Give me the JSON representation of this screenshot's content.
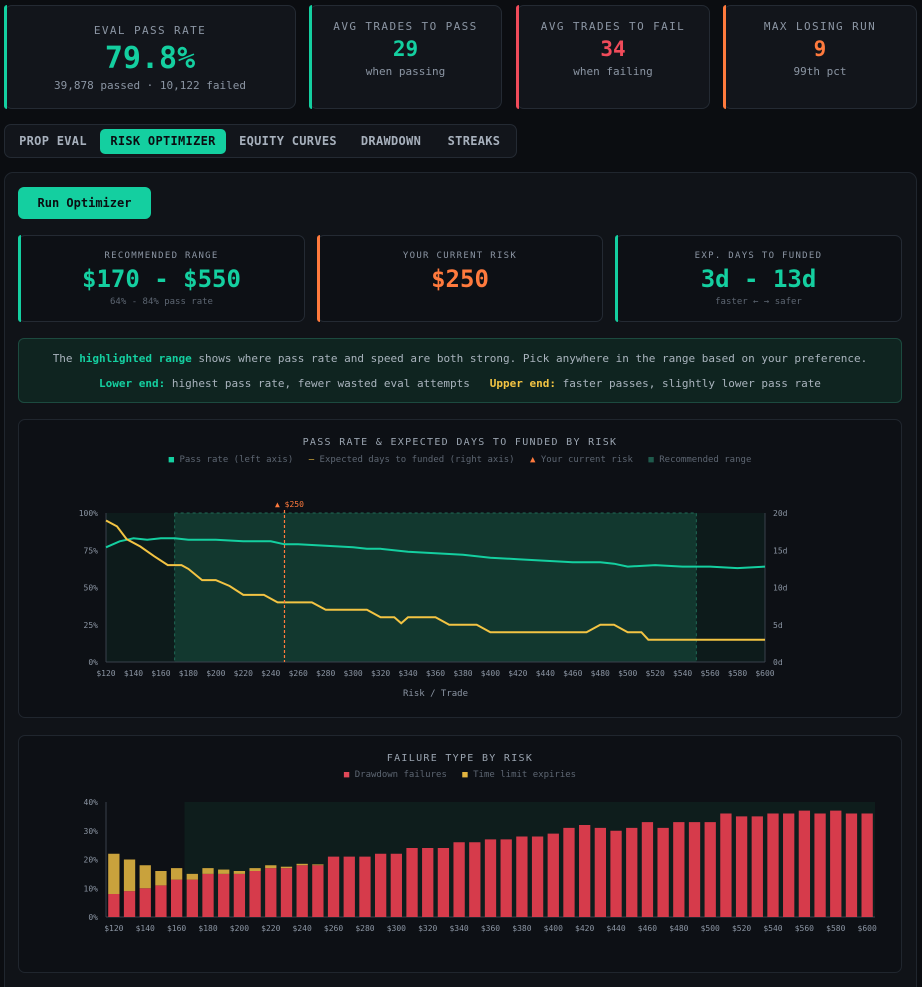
{
  "stats": [
    {
      "label": "EVAL PASS RATE",
      "value": "79.8%",
      "sub": "39,878 passed · 10,122 failed",
      "color": "#14cfa0"
    },
    {
      "label": "AVG TRADES TO PASS",
      "value": "29",
      "sub": "when passing",
      "color": "#14cfa0"
    },
    {
      "label": "AVG TRADES TO FAIL",
      "value": "34",
      "sub": "when failing",
      "color": "#f04b5a"
    },
    {
      "label": "MAX LOSING RUN",
      "value": "9",
      "sub": "99th pct",
      "color": "#ff7a3d"
    }
  ],
  "tabs": [
    "PROP EVAL",
    "RISK OPTIMIZER",
    "EQUITY CURVES",
    "DRAWDOWN",
    "STREAKS"
  ],
  "active_tab": "RISK OPTIMIZER",
  "run_button": "Run Optimizer",
  "metrics": [
    {
      "label": "RECOMMENDED RANGE",
      "value": "$170 - $550",
      "sub": "64% - 84% pass rate",
      "color": "#14cfa0"
    },
    {
      "label": "YOUR CURRENT RISK",
      "value": "$250",
      "sub": "",
      "color": "#ff7a3d"
    },
    {
      "label": "EXP. DAYS TO FUNDED",
      "value": "3d - 13d",
      "sub": "faster ← → safer",
      "color": "#14cfa0"
    }
  ],
  "info": {
    "line1_pre": "The ",
    "line1_hl": "highlighted range",
    "line1_post": " shows where pass rate and speed are both strong. Pick anywhere in the range based on your preference.",
    "lower_label": "Lower end:",
    "lower_text": " highest pass rate, fewer wasted eval attempts",
    "upper_label": "Upper end:",
    "upper_text": " faster passes, slightly lower pass rate"
  },
  "chart1": {
    "title": "PASS RATE & EXPECTED DAYS TO FUNDED BY RISK",
    "legend": {
      "pass": "■ Pass rate (left axis)",
      "days": "— Expected days to funded (right axis)",
      "current": "▲ Your current risk",
      "range": "■ Recommended range"
    },
    "current_label": "▲ $250",
    "xlabel": "Risk / Trade"
  },
  "chart2": {
    "title": "FAILURE TYPE BY RISK",
    "legend": {
      "dd": "■ Drawdown failures",
      "tl": "■ Time limit expiries"
    }
  },
  "chart_data": [
    {
      "type": "line",
      "title": "PASS RATE & EXPECTED DAYS TO FUNDED BY RISK",
      "xlabel": "Risk / Trade",
      "ylabel_left": "Pass rate",
      "ylabel_right": "Expected days to funded",
      "ylim_left": [
        0,
        100
      ],
      "ylim_right": [
        0,
        20
      ],
      "xlim": [
        120,
        600
      ],
      "x_ticks": [
        "$120",
        "$140",
        "$160",
        "$180",
        "$200",
        "$220",
        "$240",
        "$260",
        "$280",
        "$300",
        "$320",
        "$340",
        "$360",
        "$380",
        "$400",
        "$420",
        "$440",
        "$460",
        "$480",
        "$500",
        "$520",
        "$540",
        "$560",
        "$580",
        "$600"
      ],
      "y_ticks_left": [
        "0%",
        "25%",
        "50%",
        "75%",
        "100%"
      ],
      "y_ticks_right": [
        "0d",
        "5d",
        "10d",
        "15d",
        "20d"
      ],
      "recommended_range": [
        170,
        550
      ],
      "current_risk": 250,
      "series": [
        {
          "name": "Pass rate",
          "color": "#14cfa0",
          "points": [
            [
              120,
              77
            ],
            [
              130,
              81
            ],
            [
              140,
              83
            ],
            [
              150,
              82
            ],
            [
              160,
              83
            ],
            [
              170,
              83
            ],
            [
              180,
              82
            ],
            [
              200,
              82
            ],
            [
              220,
              81
            ],
            [
              240,
              81
            ],
            [
              250,
              79
            ],
            [
              260,
              79
            ],
            [
              280,
              78
            ],
            [
              300,
              77
            ],
            [
              310,
              76
            ],
            [
              320,
              76
            ],
            [
              340,
              74
            ],
            [
              360,
              73
            ],
            [
              380,
              72
            ],
            [
              400,
              70
            ],
            [
              420,
              69
            ],
            [
              440,
              68
            ],
            [
              460,
              67
            ],
            [
              480,
              67
            ],
            [
              490,
              66
            ],
            [
              500,
              64
            ],
            [
              520,
              65
            ],
            [
              540,
              64
            ],
            [
              560,
              64
            ],
            [
              580,
              63
            ],
            [
              600,
              64
            ]
          ]
        },
        {
          "name": "Expected days to funded",
          "color": "#f3c443",
          "points": [
            [
              120,
              19
            ],
            [
              128,
              18.2
            ],
            [
              135,
              16.5
            ],
            [
              145,
              15.5
            ],
            [
              155,
              14.2
            ],
            [
              165,
              13
            ],
            [
              175,
              13
            ],
            [
              180,
              12.5
            ],
            [
              190,
              11
            ],
            [
              200,
              11
            ],
            [
              210,
              10.2
            ],
            [
              220,
              9
            ],
            [
              235,
              9
            ],
            [
              245,
              8
            ],
            [
              270,
              8
            ],
            [
              280,
              7
            ],
            [
              310,
              7
            ],
            [
              320,
              6
            ],
            [
              330,
              6
            ],
            [
              335,
              5.2
            ],
            [
              340,
              6
            ],
            [
              360,
              6
            ],
            [
              370,
              5
            ],
            [
              390,
              5
            ],
            [
              400,
              4
            ],
            [
              470,
              4
            ],
            [
              480,
              5
            ],
            [
              490,
              5
            ],
            [
              500,
              4
            ],
            [
              510,
              4
            ],
            [
              515,
              3
            ],
            [
              600,
              3
            ]
          ]
        }
      ]
    },
    {
      "type": "bar",
      "stacked": true,
      "title": "FAILURE TYPE BY RISK",
      "ylim": [
        0,
        40
      ],
      "y_ticks": [
        "0%",
        "10%",
        "20%",
        "30%",
        "40%"
      ],
      "x_ticks": [
        "$120",
        "$140",
        "$160",
        "$180",
        "$200",
        "$220",
        "$240",
        "$260",
        "$280",
        "$300",
        "$320",
        "$340",
        "$360",
        "$380",
        "$400",
        "$420",
        "$440",
        "$460",
        "$480",
        "$500",
        "$520",
        "$540",
        "$560",
        "$580",
        "$600"
      ],
      "categories": [
        120,
        130,
        140,
        150,
        160,
        170,
        180,
        190,
        200,
        210,
        220,
        230,
        240,
        250,
        260,
        270,
        280,
        290,
        300,
        310,
        320,
        330,
        340,
        350,
        360,
        370,
        380,
        390,
        400,
        410,
        420,
        430,
        440,
        450,
        460,
        470,
        480,
        490,
        500,
        510,
        520,
        530,
        540,
        550,
        560,
        570,
        580,
        590,
        600
      ],
      "series": [
        {
          "name": "Drawdown failures",
          "color": "#d63b4b",
          "values": [
            8,
            9,
            10,
            11,
            13,
            13,
            15,
            15,
            15,
            16,
            17,
            17,
            18,
            18,
            21,
            21,
            21,
            22,
            22,
            24,
            24,
            24,
            26,
            26,
            27,
            27,
            28,
            28,
            29,
            31,
            32,
            31,
            30,
            31,
            33,
            31,
            33,
            33,
            33,
            36,
            35,
            35,
            36,
            36,
            37,
            36,
            37,
            36,
            36
          ]
        },
        {
          "name": "Time limit expiries",
          "color": "#c9a23c",
          "values": [
            14,
            11,
            8,
            5,
            4,
            2,
            2,
            1.5,
            1,
            1,
            1,
            0.5,
            0.5,
            0.3,
            0,
            0,
            0,
            0,
            0,
            0,
            0,
            0,
            0,
            0,
            0,
            0,
            0,
            0,
            0,
            0,
            0,
            0,
            0,
            0,
            0,
            0,
            0,
            0,
            0,
            0,
            0,
            0,
            0,
            0,
            0,
            0,
            0,
            0,
            0
          ]
        }
      ]
    }
  ]
}
